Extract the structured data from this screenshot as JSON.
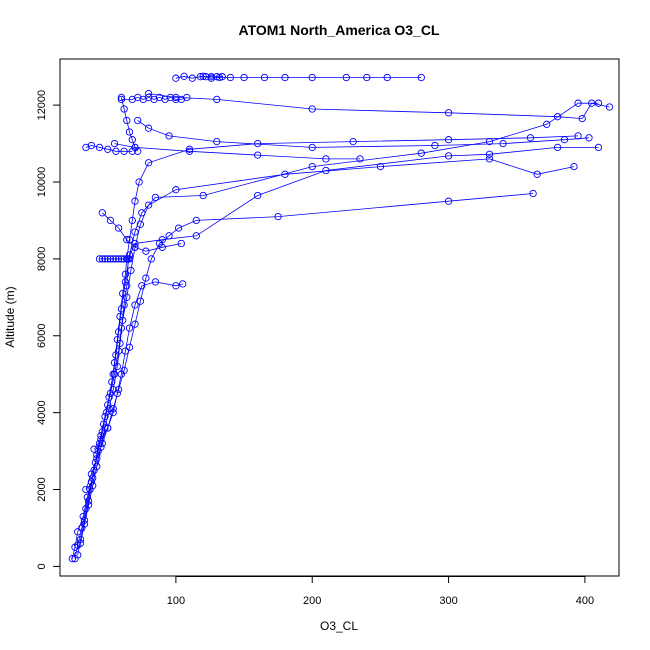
{
  "chart_data": {
    "type": "line",
    "title": "ATOM1 North_America O3_CL",
    "xlabel": "O3_CL",
    "ylabel": "Altitude (m)",
    "x_ticks": [
      100,
      200,
      300,
      400
    ],
    "y_ticks": [
      0,
      2000,
      4000,
      6000,
      8000,
      10000,
      12000
    ],
    "xlim": [
      15,
      425
    ],
    "ylim": [
      -250,
      13200
    ],
    "grid": false,
    "marker": "open-circle",
    "line_color": "#0000ff",
    "series": [
      {
        "points": [
          [
            24,
            200
          ],
          [
            26,
            500
          ],
          [
            28,
            900
          ],
          [
            32,
            1300
          ],
          [
            35,
            1800
          ],
          [
            38,
            2200
          ],
          [
            41,
            2700
          ],
          [
            44,
            3200
          ],
          [
            47,
            3700
          ],
          [
            50,
            4200
          ],
          [
            53,
            4800
          ],
          [
            55,
            5300
          ],
          [
            57,
            5900
          ],
          [
            59,
            6500
          ],
          [
            61,
            7100
          ],
          [
            63,
            7600
          ],
          [
            64,
            8000
          ],
          [
            66,
            8500
          ],
          [
            68,
            9000
          ],
          [
            70,
            9500
          ],
          [
            73,
            10000
          ],
          [
            80,
            10500
          ],
          [
            110,
            10850
          ],
          [
            160,
            11000
          ],
          [
            230,
            11050
          ],
          [
            300,
            11100
          ],
          [
            360,
            11150
          ],
          [
            395,
            11200
          ]
        ]
      },
      {
        "points": [
          [
            26,
            200
          ],
          [
            28,
            550
          ],
          [
            31,
            1000
          ],
          [
            34,
            1500
          ],
          [
            37,
            2000
          ],
          [
            40,
            2500
          ],
          [
            43,
            3000
          ],
          [
            46,
            3500
          ],
          [
            49,
            4000
          ],
          [
            52,
            4500
          ],
          [
            55,
            5000
          ],
          [
            58,
            5600
          ],
          [
            60,
            6200
          ],
          [
            62,
            6800
          ],
          [
            64,
            7300
          ],
          [
            65,
            8000
          ],
          [
            70,
            8400
          ],
          [
            90,
            8500
          ],
          [
            115,
            8600
          ],
          [
            160,
            9650
          ],
          [
            210,
            10300
          ],
          [
            300,
            10680
          ],
          [
            330,
            10720
          ],
          [
            380,
            10900
          ],
          [
            410,
            10900
          ]
        ]
      },
      {
        "points": [
          [
            28,
            300
          ],
          [
            30,
            700
          ],
          [
            33,
            1200
          ],
          [
            36,
            1700
          ],
          [
            39,
            2300
          ],
          [
            42,
            2900
          ],
          [
            45,
            3400
          ],
          [
            48,
            3900
          ],
          [
            51,
            4400
          ],
          [
            54,
            5000
          ],
          [
            56,
            5500
          ],
          [
            58,
            6100
          ],
          [
            60,
            6700
          ],
          [
            63,
            7400
          ],
          [
            66,
            8100
          ],
          [
            70,
            8700
          ],
          [
            75,
            9200
          ],
          [
            85,
            9600
          ],
          [
            120,
            9650
          ],
          [
            200,
            10400
          ],
          [
            280,
            10750
          ],
          [
            330,
            11050
          ],
          [
            372,
            11500
          ],
          [
            395,
            12050
          ],
          [
            410,
            12050
          ]
        ]
      },
      {
        "points": [
          [
            30,
            600
          ],
          [
            33,
            1100
          ],
          [
            36,
            1600
          ],
          [
            39,
            2100
          ],
          [
            42,
            2600
          ],
          [
            45,
            3100
          ],
          [
            48,
            3600
          ],
          [
            51,
            4100
          ],
          [
            54,
            4600
          ],
          [
            57,
            5200
          ],
          [
            59,
            5800
          ],
          [
            61,
            6400
          ],
          [
            64,
            7000
          ],
          [
            67,
            7700
          ],
          [
            70,
            8300
          ],
          [
            74,
            8900
          ],
          [
            80,
            9400
          ],
          [
            100,
            9800
          ],
          [
            180,
            10200
          ],
          [
            250,
            10400
          ],
          [
            330,
            10600
          ],
          [
            365,
            10200
          ],
          [
            392,
            10400
          ]
        ]
      },
      {
        "points": [
          [
            40,
            3050
          ],
          [
            45,
            3300
          ],
          [
            50,
            3600
          ],
          [
            54,
            4000
          ],
          [
            57,
            4500
          ],
          [
            60,
            5000
          ],
          [
            63,
            5600
          ],
          [
            66,
            6200
          ],
          [
            70,
            6800
          ],
          [
            75,
            7300
          ],
          [
            85,
            7400
          ],
          [
            100,
            7300
          ],
          [
            105,
            7350
          ]
        ]
      },
      {
        "points": [
          [
            34,
            2000
          ],
          [
            38,
            2400
          ],
          [
            42,
            2800
          ],
          [
            46,
            3200
          ],
          [
            50,
            3600
          ],
          [
            54,
            4100
          ],
          [
            58,
            4600
          ],
          [
            62,
            5100
          ],
          [
            66,
            5700
          ],
          [
            70,
            6300
          ],
          [
            74,
            6900
          ],
          [
            78,
            7500
          ],
          [
            82,
            8000
          ],
          [
            88,
            8400
          ],
          [
            95,
            8600
          ],
          [
            102,
            8800
          ],
          [
            115,
            9000
          ],
          [
            175,
            9100
          ],
          [
            300,
            9500
          ],
          [
            362,
            9700
          ]
        ]
      },
      {
        "points": [
          [
            44,
            8000
          ],
          [
            46,
            8000
          ],
          [
            48,
            8000
          ],
          [
            50,
            8000
          ],
          [
            52,
            8000
          ],
          [
            54,
            8000
          ],
          [
            56,
            8000
          ],
          [
            58,
            8000
          ],
          [
            60,
            8000
          ],
          [
            62,
            8000
          ],
          [
            64,
            8000
          ],
          [
            66,
            8000
          ]
        ]
      },
      {
        "points": [
          [
            60,
            12150
          ],
          [
            68,
            12150
          ],
          [
            72,
            12200
          ],
          [
            76,
            12150
          ],
          [
            80,
            12200
          ],
          [
            84,
            12150
          ],
          [
            88,
            12200
          ],
          [
            92,
            12150
          ],
          [
            96,
            12200
          ],
          [
            100,
            12150
          ],
          [
            104,
            12150
          ],
          [
            108,
            12200
          ]
        ]
      },
      {
        "points": [
          [
            60,
            12200
          ],
          [
            62,
            11900
          ],
          [
            64,
            11600
          ],
          [
            66,
            11300
          ],
          [
            68,
            11100
          ],
          [
            70,
            10900
          ],
          [
            72,
            10800
          ]
        ]
      },
      {
        "points": [
          [
            100,
            12700
          ],
          [
            106,
            12750
          ],
          [
            112,
            12700
          ],
          [
            120,
            12750
          ],
          [
            126,
            12700
          ],
          [
            132,
            12720
          ],
          [
            140,
            12720
          ],
          [
            150,
            12720
          ],
          [
            165,
            12720
          ],
          [
            180,
            12720
          ],
          [
            200,
            12720
          ],
          [
            225,
            12720
          ],
          [
            240,
            12720
          ],
          [
            255,
            12720
          ],
          [
            280,
            12720
          ]
        ]
      },
      {
        "points": [
          [
            118,
            12740
          ],
          [
            122,
            12740
          ],
          [
            126,
            12740
          ],
          [
            130,
            12740
          ],
          [
            134,
            12740
          ]
        ]
      },
      {
        "points": [
          [
            68,
            10800
          ],
          [
            62,
            10800
          ],
          [
            56,
            10800
          ],
          [
            50,
            10850
          ],
          [
            44,
            10900
          ],
          [
            38,
            10950
          ],
          [
            34,
            10900
          ]
        ]
      },
      {
        "points": [
          [
            55,
            11000
          ],
          [
            70,
            10900
          ],
          [
            110,
            10800
          ],
          [
            160,
            10700
          ],
          [
            210,
            10600
          ],
          [
            235,
            10600
          ]
        ]
      },
      {
        "points": [
          [
            46,
            9200
          ],
          [
            52,
            9000
          ],
          [
            58,
            8800
          ],
          [
            64,
            8500
          ],
          [
            70,
            8300
          ],
          [
            78,
            8200
          ],
          [
            90,
            8300
          ],
          [
            104,
            8400
          ]
        ]
      },
      {
        "points": [
          [
            72,
            11600
          ],
          [
            80,
            11400
          ],
          [
            95,
            11200
          ],
          [
            130,
            11050
          ],
          [
            200,
            10900
          ],
          [
            290,
            10950
          ],
          [
            340,
            11000
          ],
          [
            385,
            11100
          ],
          [
            403,
            11150
          ]
        ]
      },
      {
        "points": [
          [
            80,
            12300
          ],
          [
            100,
            12200
          ],
          [
            130,
            12150
          ],
          [
            200,
            11900
          ],
          [
            300,
            11800
          ],
          [
            380,
            11700
          ],
          [
            398,
            11650
          ],
          [
            405,
            12050
          ],
          [
            418,
            11950
          ]
        ]
      }
    ]
  }
}
